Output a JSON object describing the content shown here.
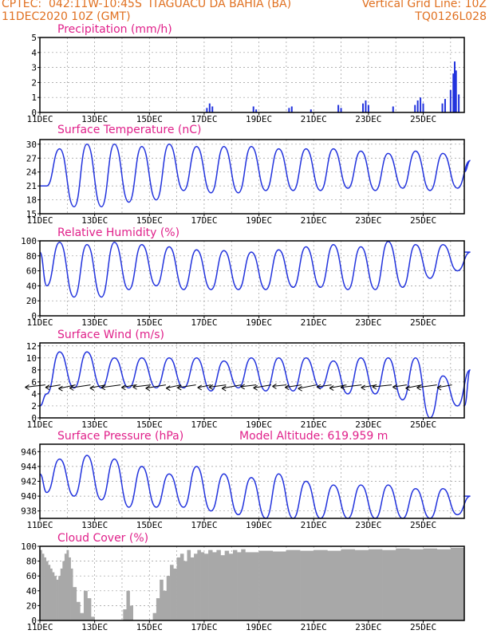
{
  "header": {
    "source": "CPTEC:",
    "coords": "042:11W-10:45S",
    "location": "ITAGUACU DA BAHIA (BA)",
    "date": "11DEC2020 10Z (GMT)",
    "grid_note": "Vertical Grid Line: 10Z",
    "code": "TQ0126L028"
  },
  "colors": {
    "header": "#e07020",
    "title": "#e0208a",
    "series": "#2233dd",
    "cloud": "#a8a8a8",
    "grid": "#999999"
  },
  "chart_data": [
    {
      "type": "bar",
      "title": "Precipitation (mm/h)",
      "ylim": [
        0,
        5
      ],
      "yticks": [
        0,
        1,
        2,
        3,
        4,
        5
      ],
      "xticks": [
        "11DEC",
        "13DEC",
        "15DEC",
        "17DEC",
        "19DEC",
        "21DEC",
        "23DEC",
        "25DEC"
      ],
      "x_start_day": 11,
      "x_end_day": 26.5,
      "bursts": [
        {
          "day": 17.1,
          "value": 0.3
        },
        {
          "day": 17.2,
          "value": 0.6
        },
        {
          "day": 17.3,
          "value": 0.4
        },
        {
          "day": 18.8,
          "value": 0.4
        },
        {
          "day": 18.9,
          "value": 0.2
        },
        {
          "day": 20.1,
          "value": 0.3
        },
        {
          "day": 20.2,
          "value": 0.4
        },
        {
          "day": 20.9,
          "value": 0.2
        },
        {
          "day": 21.9,
          "value": 0.5
        },
        {
          "day": 22.0,
          "value": 0.3
        },
        {
          "day": 22.8,
          "value": 0.6
        },
        {
          "day": 22.9,
          "value": 0.8
        },
        {
          "day": 23.0,
          "value": 0.5
        },
        {
          "day": 23.9,
          "value": 0.4
        },
        {
          "day": 24.7,
          "value": 0.5
        },
        {
          "day": 24.8,
          "value": 0.8
        },
        {
          "day": 24.9,
          "value": 1.0
        },
        {
          "day": 25.0,
          "value": 0.6
        },
        {
          "day": 25.7,
          "value": 0.6
        },
        {
          "day": 25.8,
          "value": 0.9
        },
        {
          "day": 26.0,
          "value": 1.5
        },
        {
          "day": 26.1,
          "value": 2.6
        },
        {
          "day": 26.15,
          "value": 3.4
        },
        {
          "day": 26.2,
          "value": 2.8
        },
        {
          "day": 26.3,
          "value": 1.2
        }
      ]
    },
    {
      "type": "line",
      "title": "Surface Temperature (nC)",
      "ylim": [
        15,
        31
      ],
      "yticks": [
        15,
        18,
        21,
        24,
        27,
        30
      ],
      "xticks": [
        "11DEC",
        "13DEC",
        "15DEC",
        "17DEC",
        "19DEC",
        "21DEC",
        "23DEC",
        "25DEC"
      ],
      "daily_max": [
        29,
        30,
        30,
        29.5,
        30,
        29.5,
        29.5,
        29.5,
        29,
        29,
        29,
        28.5,
        28,
        28.5,
        28,
        26.5
      ],
      "daily_min": [
        21,
        16.5,
        16.5,
        17.5,
        18,
        20,
        19.5,
        19.5,
        20,
        20,
        20,
        20.5,
        20,
        20.5,
        20,
        20.5
      ],
      "start_value": 21,
      "end_value": 24
    },
    {
      "type": "line",
      "title": "Relative Humidity (%)",
      "ylim": [
        0,
        100
      ],
      "yticks": [
        0,
        20,
        40,
        60,
        80,
        100
      ],
      "xticks": [
        "11DEC",
        "13DEC",
        "15DEC",
        "17DEC",
        "19DEC",
        "21DEC",
        "23DEC",
        "25DEC"
      ],
      "daily_max": [
        98,
        95,
        98,
        95,
        92,
        88,
        87,
        85,
        88,
        92,
        95,
        92,
        99,
        95,
        95,
        85
      ],
      "daily_min": [
        40,
        25,
        25,
        35,
        40,
        35,
        35,
        35,
        35,
        38,
        38,
        35,
        35,
        38,
        50,
        60
      ],
      "start_value": 85,
      "end_value": 85
    },
    {
      "type": "line",
      "title": "Surface Wind (m/s)",
      "ylim": [
        0,
        12.5
      ],
      "yticks": [
        0,
        2,
        4,
        6,
        8,
        10,
        12
      ],
      "xticks": [
        "11DEC",
        "13DEC",
        "15DEC",
        "17DEC",
        "19DEC",
        "21DEC",
        "23DEC",
        "25DEC"
      ],
      "daily_max": [
        11,
        11,
        10,
        10,
        10,
        10,
        9.5,
        10,
        10,
        10,
        9.5,
        10,
        10,
        10,
        7,
        8
      ],
      "daily_min": [
        4,
        5,
        5,
        5,
        5,
        5,
        4.5,
        5,
        4.5,
        4.5,
        5,
        4,
        4,
        3,
        0,
        2
      ],
      "start_value": 2,
      "end_value": 2
    },
    {
      "type": "line",
      "title": "Surface Pressure (hPa)",
      "annotation": "Model Altitude: 619.959 m",
      "ylim": [
        937,
        947
      ],
      "yticks": [
        938,
        940,
        942,
        944,
        946
      ],
      "xticks": [
        "11DEC",
        "13DEC",
        "15DEC",
        "17DEC",
        "19DEC",
        "21DEC",
        "23DEC",
        "25DEC"
      ],
      "daily_max": [
        945,
        945.5,
        945,
        944,
        943,
        944,
        943,
        942.5,
        943,
        942,
        941.5,
        941.5,
        941.5,
        941,
        941,
        940
      ],
      "daily_min": [
        940.5,
        940,
        939.5,
        938.5,
        938.5,
        938.5,
        938,
        937.5,
        937,
        937,
        937,
        937,
        937,
        937,
        937,
        937.5
      ],
      "start_value": 943,
      "end_value": 940
    },
    {
      "type": "bar",
      "title": "Cloud Cover (%)",
      "ylim": [
        0,
        100
      ],
      "yticks": [
        0,
        20,
        40,
        60,
        80,
        100
      ],
      "xticks": [
        "11DEC",
        "13DEC",
        "15DEC",
        "17DEC",
        "19DEC",
        "21DEC",
        "23DEC",
        "25DEC"
      ],
      "segments": [
        {
          "from": 11.0,
          "to": 12.2,
          "values": [
            95,
            90,
            85,
            80,
            75,
            70,
            65,
            60,
            55,
            60,
            70,
            80,
            90,
            95,
            85,
            70
          ]
        },
        {
          "from": 12.2,
          "to": 13.8,
          "values": [
            45,
            25,
            10,
            40,
            30,
            5,
            0,
            0,
            0,
            0,
            0,
            0
          ]
        },
        {
          "from": 13.8,
          "to": 15.0,
          "values": [
            0,
            0,
            15,
            40,
            20,
            0,
            0,
            0,
            0,
            0
          ]
        },
        {
          "from": 15.0,
          "to": 17.0,
          "values": [
            0,
            10,
            30,
            55,
            40,
            60,
            75,
            70,
            85,
            90,
            80,
            95,
            85,
            90,
            95,
            92
          ]
        },
        {
          "from": 17.0,
          "to": 18.5,
          "values": [
            90,
            95,
            92,
            95,
            88,
            94,
            90,
            95,
            92,
            96
          ]
        },
        {
          "from": 18.5,
          "to": 26.5,
          "values": [
            92,
            94,
            93,
            95,
            94,
            95,
            94,
            96,
            95,
            96,
            95,
            97,
            96,
            97,
            96,
            98
          ]
        }
      ]
    }
  ]
}
